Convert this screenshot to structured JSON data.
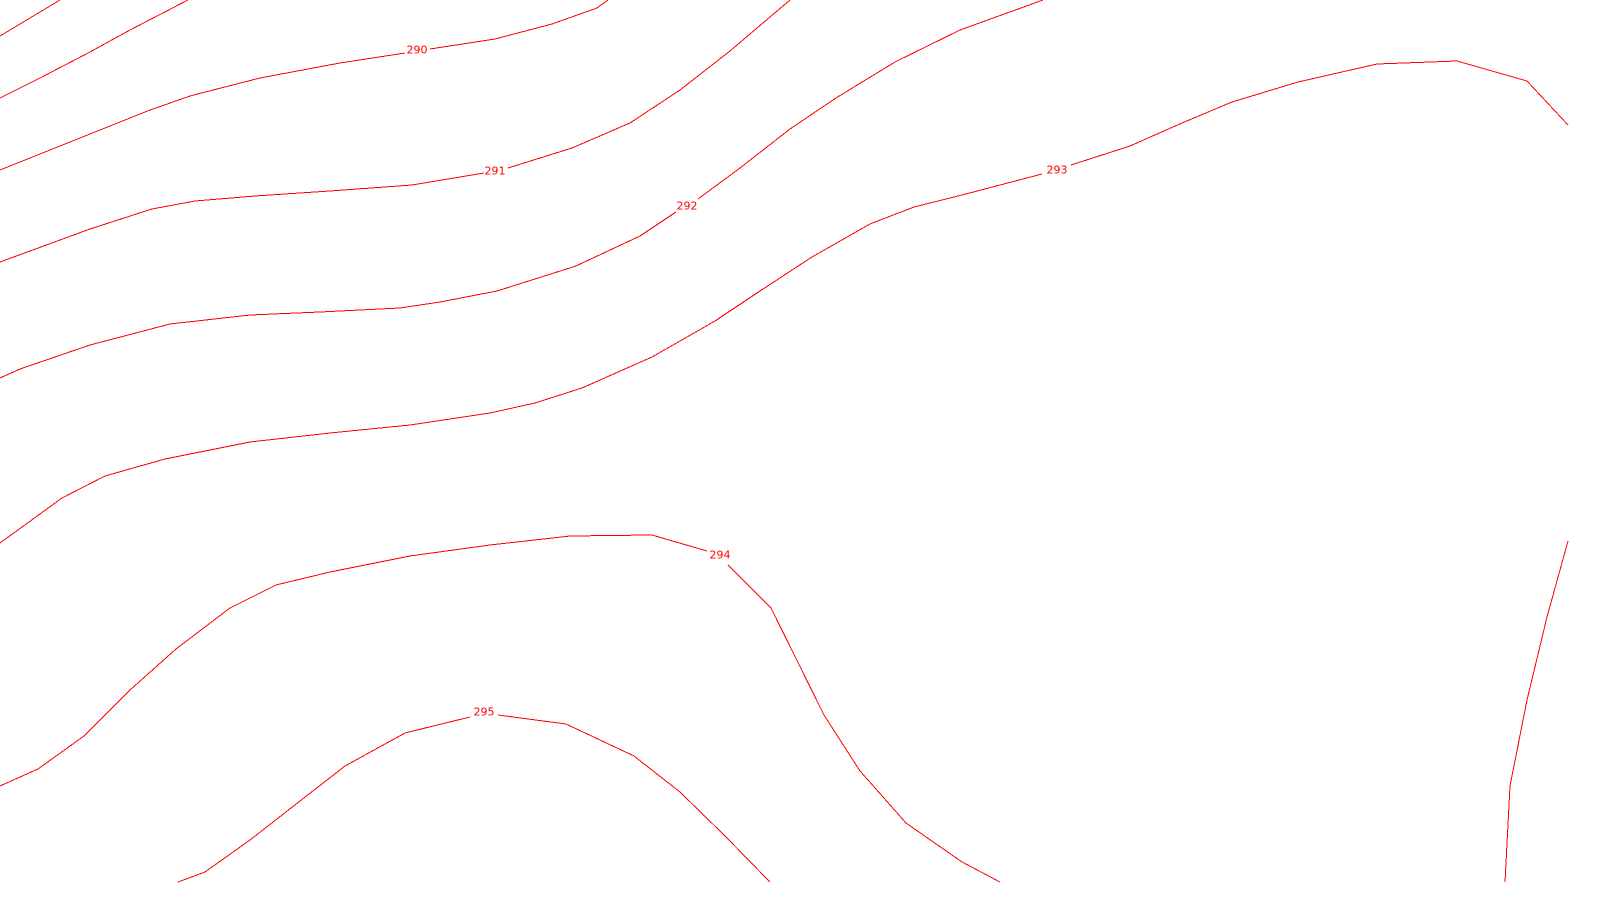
{
  "map": {
    "line_color": "#ff0000",
    "background_color": "#ffffff",
    "contour_labels": {
      "c290": "290",
      "c291": "291",
      "c292": "292",
      "c293": "293",
      "c294": "294",
      "c295": "295"
    }
  }
}
